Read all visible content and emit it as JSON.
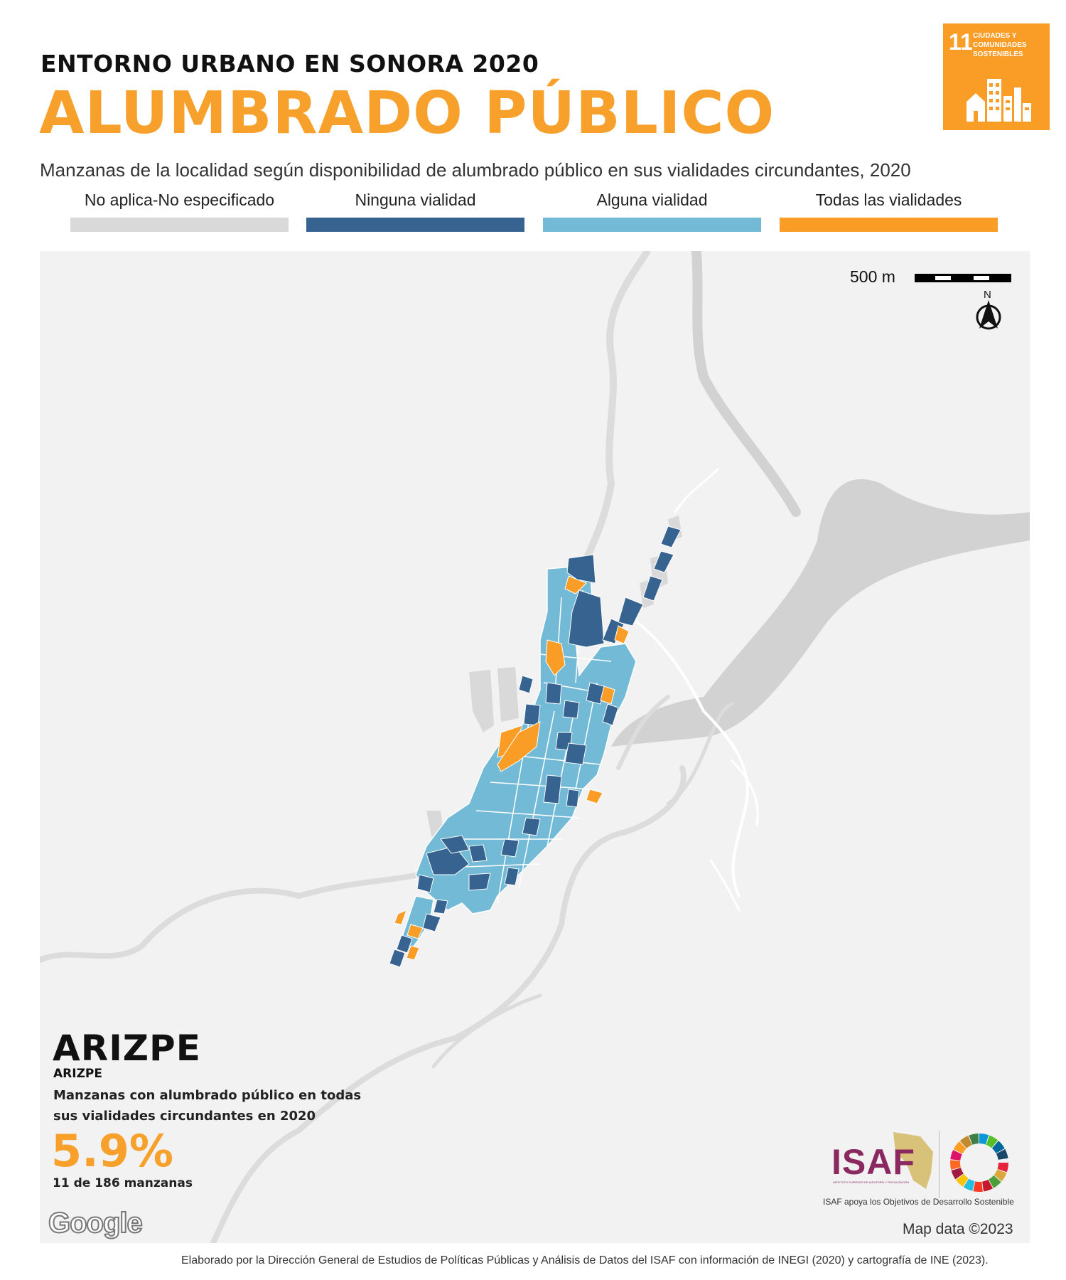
{
  "header": {
    "kicker": "ENTORNO URBANO EN SONORA 2020",
    "title": "ALUMBRADO PÚBLICO",
    "subtitle": "Manzanas de la localidad según disponibilidad de alumbrado público en sus vialidades circundantes, 2020"
  },
  "sdg_badge": {
    "number": "11",
    "text": "CIUDADES Y COMUNIDADES SOSTENIBLES",
    "color": "#f99d26",
    "icon": "city-buildings-icon"
  },
  "legend": [
    {
      "label": "No aplica-No especificado",
      "color": "#d9d9d9"
    },
    {
      "label": "Ninguna vialidad",
      "color": "#36638f"
    },
    {
      "label": "Alguna vialidad",
      "color": "#72bad5"
    },
    {
      "label": "Todas las vialidades",
      "color": "#f99d26"
    }
  ],
  "map": {
    "scale_label": "500 m",
    "north_label": "N",
    "attribution": "Map data ©2023",
    "provider": "Google"
  },
  "locality": {
    "municipality": "ARIZPE",
    "locality": "ARIZPE",
    "stat_description": "Manzanas con alumbrado público en todas sus vialidades circundantes en 2020",
    "stat_percent": "5.9%",
    "stat_count": "11 de 186 manzanas"
  },
  "branding": {
    "isaf_logo": "ISAF",
    "isaf_logo_subtext": "INSTITUTO SUPERIOR DE AUDITORÍA Y FISCALIZACIÓN",
    "isaf_caption": "ISAF apoya los Objetivos de Desarrollo Sostenible",
    "sdg_wheel_icon": "sdg-wheel-icon"
  },
  "footer": "Elaborado por la Dirección General de Estudios de Políticas Públicas y Análisis de Datos del ISAF con información de INEGI (2020) y cartografía de INE (2023)."
}
